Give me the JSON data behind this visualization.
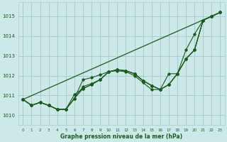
{
  "background_color": "#cce8e8",
  "grid_color": "#a8cccc",
  "line_color": "#1a5c1a",
  "xlabel": "Graphe pression niveau de la mer (hPa)",
  "ylim": [
    1009.5,
    1015.7
  ],
  "xlim": [
    -0.5,
    23.5
  ],
  "yticks": [
    1010,
    1011,
    1012,
    1013,
    1014,
    1015
  ],
  "xticks": [
    0,
    1,
    2,
    3,
    4,
    5,
    6,
    7,
    8,
    9,
    10,
    11,
    12,
    13,
    14,
    15,
    16,
    17,
    18,
    19,
    20,
    21,
    22,
    23
  ],
  "series": [
    [
      1010.8,
      1010.5,
      1010.65,
      1010.5,
      1010.3,
      1010.3,
      1011.05,
      1011.35,
      1011.55,
      1011.8,
      1012.2,
      1012.3,
      1012.25,
      1012.1,
      1011.75,
      1011.5,
      1011.3,
      1011.55,
      1012.1,
      1013.3,
      1014.1,
      1014.8,
      1015.0,
      1015.2
    ],
    [
      1010.8,
      1010.5,
      1010.65,
      1010.5,
      1010.3,
      1010.3,
      1010.85,
      1011.35,
      1011.55,
      1011.8,
      1012.2,
      1012.3,
      1012.25,
      1012.1,
      1011.75,
      1011.5,
      1011.3,
      1011.55,
      1012.1,
      1012.85,
      1013.3,
      1014.8,
      1015.0,
      1015.2
    ],
    [
      1010.8,
      1010.5,
      1010.65,
      1010.5,
      1010.3,
      1010.3,
      1010.85,
      1011.45,
      1011.6,
      1011.8,
      1012.2,
      1012.3,
      1012.25,
      1012.1,
      1011.75,
      1011.5,
      1011.3,
      1011.55,
      1012.1,
      1012.85,
      1013.3,
      1014.8,
      1015.0,
      1015.2
    ],
    [
      1010.8,
      1010.5,
      1010.65,
      1010.5,
      1010.3,
      1010.3,
      1010.85,
      1011.8,
      1011.9,
      1012.05,
      1012.2,
      1012.25,
      1012.2,
      1012.0,
      1011.65,
      1011.3,
      1011.3,
      1012.1,
      1012.1,
      1012.85,
      1013.3,
      1014.8,
      1015.0,
      1015.2
    ]
  ],
  "straight_line": [
    1010.8,
    1015.2
  ],
  "straight_line_x": [
    0,
    23
  ]
}
